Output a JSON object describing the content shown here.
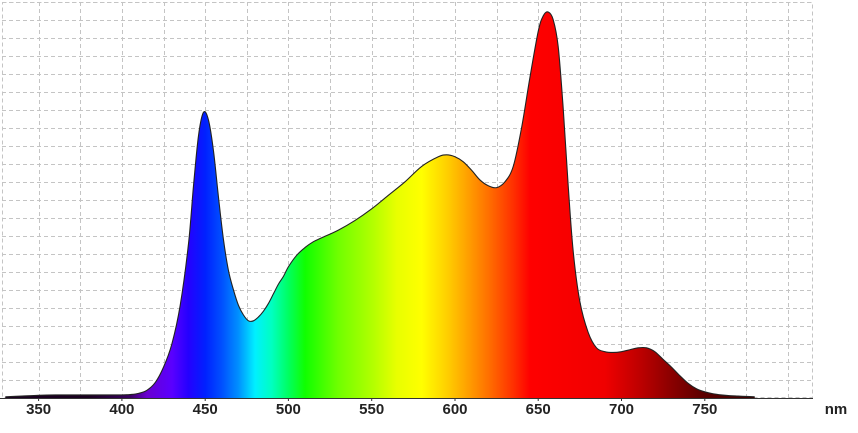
{
  "chart_data": {
    "type": "area",
    "title": "",
    "xlabel": "",
    "ylabel": "",
    "x_unit": "nm",
    "xlim": [
      328,
      815
    ],
    "ylim": [
      0,
      1
    ],
    "x_ticks": [
      350,
      400,
      450,
      500,
      550,
      600,
      650,
      700,
      750
    ],
    "grid": true,
    "legend": "none",
    "fill": "visible-spectrum colors by wavelength",
    "series": [
      {
        "x": [
          330,
          340,
          350,
          360,
          370,
          380,
          390,
          400,
          405,
          410,
          415,
          420,
          425,
          430,
          435,
          440,
          443,
          446,
          449,
          452,
          455,
          458,
          461,
          464,
          467,
          470,
          473,
          476,
          479,
          482,
          485,
          488,
          491,
          494,
          497,
          500,
          505,
          510,
          515,
          520,
          530,
          540,
          550,
          560,
          570,
          580,
          590,
          595,
          600,
          605,
          610,
          615,
          620,
          625,
          630,
          635,
          640,
          645,
          650,
          653,
          656,
          659,
          662,
          665,
          668,
          671,
          675,
          680,
          685,
          690,
          695,
          700,
          705,
          710,
          715,
          720,
          725,
          730,
          735,
          740,
          745,
          750,
          755,
          760,
          765,
          770,
          775,
          780
        ],
        "y": [
          0.003,
          0.005,
          0.007,
          0.008,
          0.008,
          0.008,
          0.008,
          0.008,
          0.009,
          0.012,
          0.02,
          0.04,
          0.08,
          0.14,
          0.24,
          0.4,
          0.55,
          0.68,
          0.74,
          0.72,
          0.64,
          0.52,
          0.41,
          0.33,
          0.28,
          0.24,
          0.215,
          0.2,
          0.2,
          0.21,
          0.225,
          0.245,
          0.27,
          0.295,
          0.315,
          0.34,
          0.37,
          0.39,
          0.405,
          0.415,
          0.435,
          0.46,
          0.49,
          0.525,
          0.56,
          0.6,
          0.625,
          0.63,
          0.625,
          0.612,
          0.59,
          0.565,
          0.55,
          0.545,
          0.56,
          0.6,
          0.7,
          0.83,
          0.95,
          0.99,
          1.0,
          0.98,
          0.91,
          0.75,
          0.55,
          0.38,
          0.25,
          0.17,
          0.13,
          0.12,
          0.118,
          0.12,
          0.125,
          0.13,
          0.13,
          0.12,
          0.1,
          0.08,
          0.058,
          0.038,
          0.024,
          0.016,
          0.011,
          0.008,
          0.006,
          0.005,
          0.004,
          0.003
        ]
      }
    ]
  },
  "colors": {
    "grid": "#c4c4c4",
    "axis": "#333333",
    "outline": "#222222"
  }
}
